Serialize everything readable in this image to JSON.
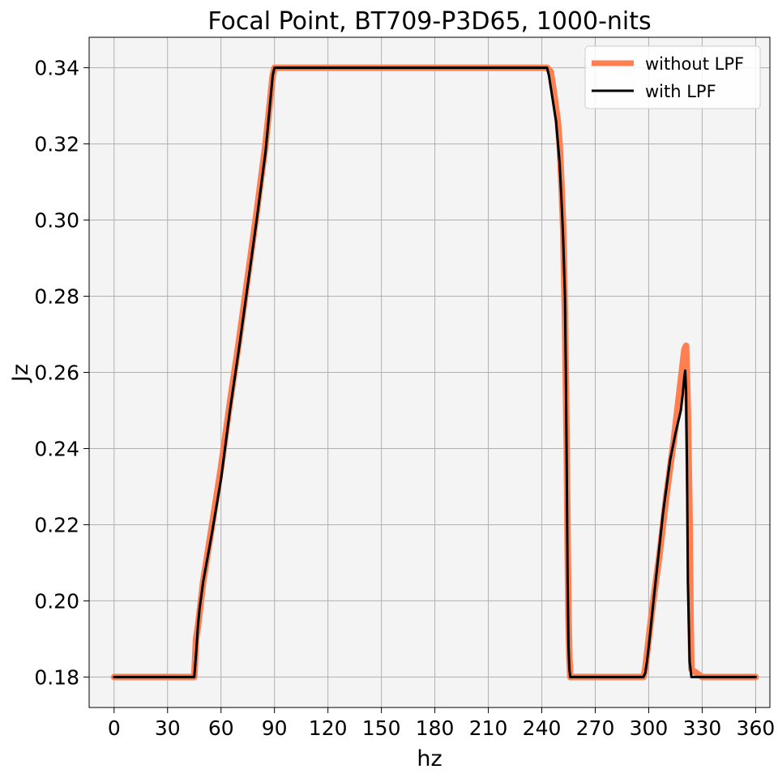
{
  "chart_data": {
    "type": "line",
    "title": "Focal Point,  BT709-P3D65,  1000-nits",
    "xlabel": "hz",
    "ylabel": "Jz",
    "xlim": [
      -14,
      368
    ],
    "ylim": [
      0.172,
      0.348
    ],
    "xticks": [
      0,
      30,
      60,
      90,
      120,
      150,
      180,
      210,
      240,
      270,
      300,
      330,
      360
    ],
    "xtick_labels": [
      "0",
      "30",
      "60",
      "90",
      "120",
      "150",
      "180",
      "210",
      "240",
      "270",
      "300",
      "330",
      "360"
    ],
    "yticks": [
      0.18,
      0.2,
      0.22,
      0.24,
      0.26,
      0.28,
      0.3,
      0.32,
      0.34
    ],
    "ytick_labels": [
      "0.18",
      "0.20",
      "0.22",
      "0.24",
      "0.26",
      "0.28",
      "0.30",
      "0.32",
      "0.34"
    ],
    "grid": true,
    "legend_position": "top-right",
    "series": [
      {
        "name": "without LPF",
        "color": "#ff7f50",
        "x": [
          0,
          45,
          45.5,
          46,
          47,
          50,
          55,
          60,
          65,
          70,
          75,
          80,
          85,
          89,
          90,
          100,
          120,
          150,
          180,
          210,
          240,
          243,
          245,
          247,
          249,
          250,
          251,
          252,
          253,
          254,
          254.5,
          255,
          255.5,
          256,
          260,
          270,
          280,
          290,
          297,
          298,
          299,
          300,
          302,
          304,
          306,
          308,
          310,
          312,
          314,
          316,
          318,
          319,
          320,
          321,
          322,
          323,
          323.5,
          324,
          330,
          345,
          360
        ],
        "y": [
          0.18,
          0.18,
          0.185,
          0.19,
          0.193,
          0.205,
          0.22,
          0.235,
          0.252,
          0.268,
          0.285,
          0.302,
          0.32,
          0.338,
          0.34,
          0.34,
          0.34,
          0.34,
          0.34,
          0.34,
          0.34,
          0.34,
          0.339,
          0.333,
          0.326,
          0.32,
          0.31,
          0.298,
          0.275,
          0.24,
          0.215,
          0.195,
          0.185,
          0.18,
          0.18,
          0.18,
          0.18,
          0.18,
          0.18,
          0.182,
          0.186,
          0.19,
          0.198,
          0.205,
          0.212,
          0.22,
          0.228,
          0.235,
          0.242,
          0.25,
          0.258,
          0.262,
          0.266,
          0.267,
          0.25,
          0.22,
          0.195,
          0.182,
          0.18,
          0.18,
          0.18
        ]
      },
      {
        "name": "with LPF",
        "color": "#000000",
        "x": [
          0,
          45,
          46,
          47,
          48,
          50,
          55,
          60,
          65,
          70,
          75,
          80,
          85,
          88,
          89,
          90,
          100,
          120,
          150,
          180,
          210,
          240,
          243,
          244,
          246,
          248,
          250,
          251,
          252,
          253,
          253.5,
          254,
          254.5,
          255,
          255.5,
          256,
          260,
          270,
          280,
          290,
          296,
          297,
          298,
          299,
          300,
          302,
          305,
          308,
          310,
          312,
          315,
          318,
          319,
          320,
          320.5,
          321,
          321.5,
          322,
          323,
          324,
          330,
          345,
          360
        ],
        "y": [
          0.18,
          0.18,
          0.186,
          0.193,
          0.198,
          0.205,
          0.218,
          0.232,
          0.25,
          0.266,
          0.283,
          0.3,
          0.318,
          0.333,
          0.338,
          0.34,
          0.34,
          0.34,
          0.34,
          0.34,
          0.34,
          0.34,
          0.34,
          0.338,
          0.332,
          0.326,
          0.315,
          0.306,
          0.295,
          0.28,
          0.26,
          0.235,
          0.205,
          0.188,
          0.182,
          0.18,
          0.18,
          0.18,
          0.18,
          0.18,
          0.18,
          0.18,
          0.181,
          0.184,
          0.188,
          0.197,
          0.21,
          0.223,
          0.23,
          0.237,
          0.244,
          0.25,
          0.254,
          0.259,
          0.2605,
          0.255,
          0.235,
          0.205,
          0.184,
          0.18,
          0.18,
          0.18,
          0.18
        ]
      }
    ]
  },
  "style": {
    "plot_background": "#f4f4f4",
    "grid_color": "#b0b0b0",
    "axis_color": "#000000"
  }
}
